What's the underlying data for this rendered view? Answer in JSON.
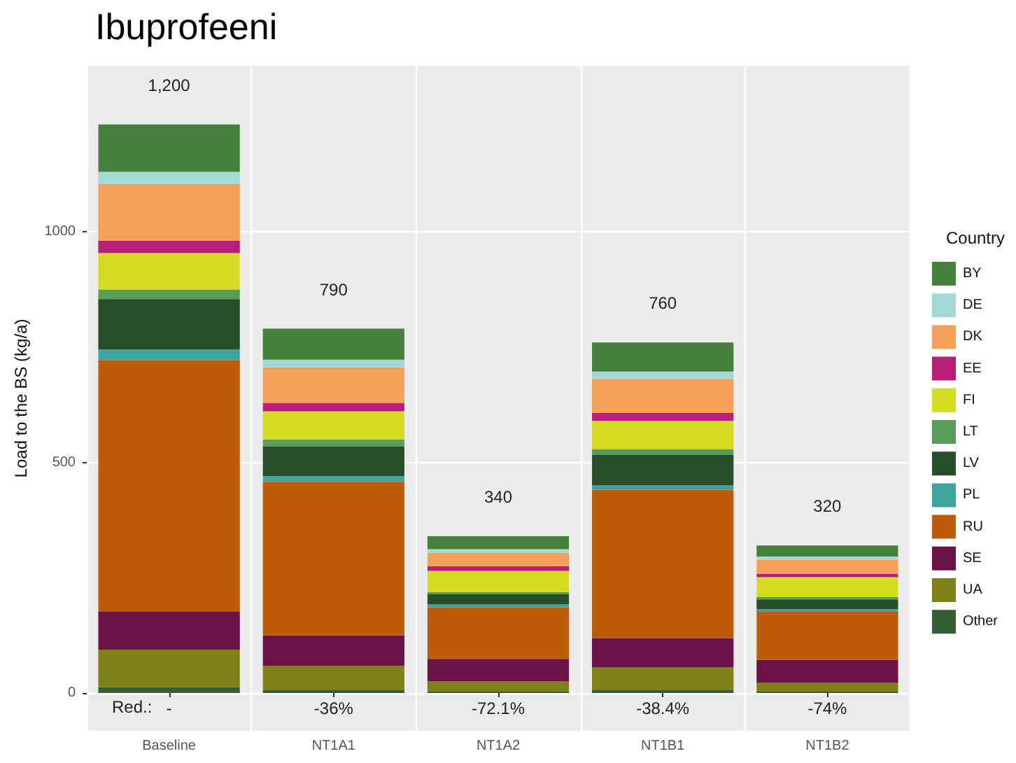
{
  "chart_data": {
    "type": "bar",
    "title": "Ibuprofeeni",
    "ylabel": "Load to the BS (kg/a)",
    "legend_title": "Country",
    "categories": [
      "Baseline",
      "NT1A1",
      "NT1A2",
      "NT1B1",
      "NT1B2"
    ],
    "stacked": true,
    "series": [
      {
        "name": "Other",
        "color": "#355e35",
        "values": [
          13,
          7,
          3,
          7,
          3
        ]
      },
      {
        "name": "UA",
        "color": "#808019",
        "values": [
          81,
          52,
          22,
          49,
          19
        ]
      },
      {
        "name": "SE",
        "color": "#6b1247",
        "values": [
          83,
          66,
          49,
          63,
          50
        ]
      },
      {
        "name": "RU",
        "color": "#bd5c0a",
        "values": [
          545,
          333,
          112,
          322,
          104
        ]
      },
      {
        "name": "PL",
        "color": "#3fa39e",
        "values": [
          23,
          12,
          6,
          9,
          6
        ]
      },
      {
        "name": "LV",
        "color": "#284d28",
        "values": [
          109,
          65,
          22,
          66,
          21
        ]
      },
      {
        "name": "LT",
        "color": "#5a9c5a",
        "values": [
          21,
          15,
          5,
          13,
          5
        ]
      },
      {
        "name": "FI",
        "color": "#d4db23",
        "values": [
          79,
          61,
          46,
          61,
          43
        ]
      },
      {
        "name": "EE",
        "color": "#b81e78",
        "values": [
          27,
          18,
          10,
          17,
          7
        ]
      },
      {
        "name": "DK",
        "color": "#f5a05a",
        "values": [
          123,
          77,
          29,
          74,
          31
        ]
      },
      {
        "name": "DE",
        "color": "#a3d9d6",
        "values": [
          26,
          17,
          8,
          16,
          7
        ]
      },
      {
        "name": "BY",
        "color": "#45803c",
        "values": [
          103,
          67,
          28,
          63,
          24
        ]
      }
    ],
    "annotations": [
      "Red.:",
      "-",
      "-36%",
      "-72.1%",
      "-38.4%",
      "-74%",
      {
        "text": "1,200",
        "x": "Baseline",
        "y": 1233
      },
      {
        "text": "790",
        "x": "NT1A1",
        "y": 790
      },
      {
        "text": "340",
        "x": "NT1A2",
        "y": 340
      },
      {
        "text": "760",
        "x": "NT1B1",
        "y": 760
      },
      {
        "text": "320",
        "x": "NT1B2",
        "y": 320
      }
    ],
    "ylim": [
      -82,
      1360
    ],
    "yticks": [
      0,
      500,
      1000
    ],
    "grid": true,
    "legend": "right"
  }
}
